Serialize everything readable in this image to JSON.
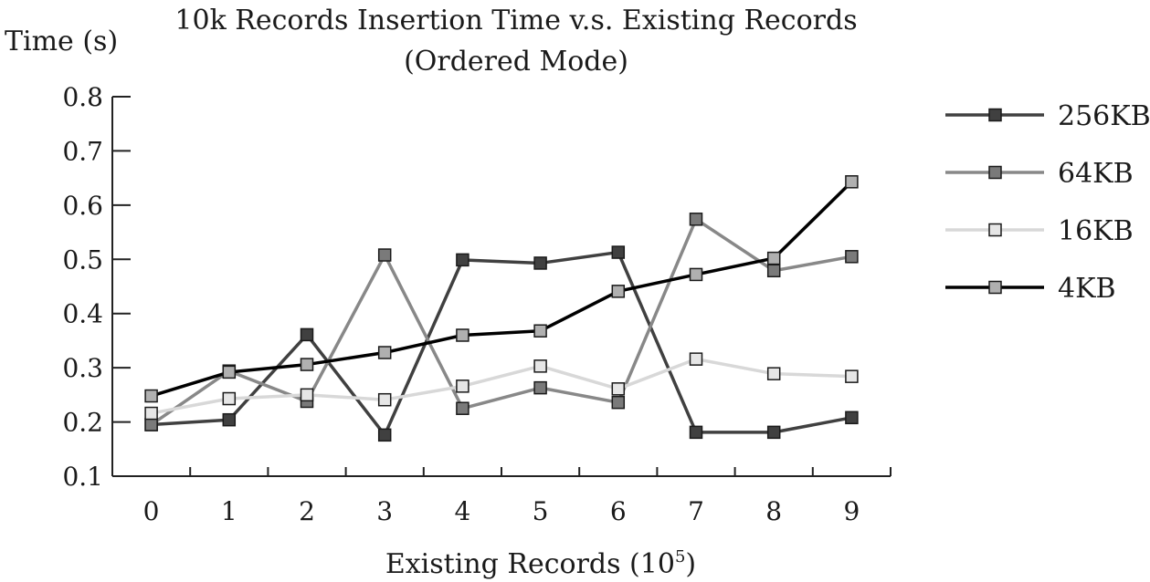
{
  "chart_data": {
    "type": "line",
    "title": "10k Records Insertion Time v.s. Existing Records",
    "subtitle": "(Ordered Mode)",
    "ylabel": "Time (s)",
    "xlabel": "Existing Records (10",
    "xlabel_sup": "5",
    "xlabel_close": ")",
    "categories": [
      "0",
      "1",
      "2",
      "3",
      "4",
      "5",
      "6",
      "7",
      "8",
      "9"
    ],
    "ylim": [
      0.1,
      0.8
    ],
    "yticks": [
      "0.1",
      "0.2",
      "0.3",
      "0.4",
      "0.5",
      "0.6",
      "0.7",
      "0.8"
    ],
    "grid": false,
    "legend_position": "right",
    "series": [
      {
        "name": "256KB",
        "values": [
          0.195,
          0.204,
          0.361,
          0.176,
          0.499,
          0.493,
          0.513,
          0.181,
          0.181,
          0.208
        ],
        "line_color": "#404040",
        "marker_color": "#404040"
      },
      {
        "name": "64KB",
        "values": [
          0.195,
          0.294,
          0.238,
          0.508,
          0.225,
          0.263,
          0.236,
          0.574,
          0.479,
          0.505
        ],
        "line_color": "#888888",
        "marker_color": "#7a7a7a"
      },
      {
        "name": "16KB",
        "values": [
          0.216,
          0.243,
          0.25,
          0.241,
          0.266,
          0.303,
          0.261,
          0.316,
          0.289,
          0.284
        ],
        "line_color": "#d8d8d8",
        "marker_color": "#e6e6e6"
      },
      {
        "name": "4KB",
        "values": [
          0.248,
          0.292,
          0.306,
          0.328,
          0.36,
          0.368,
          0.441,
          0.472,
          0.502,
          0.643
        ],
        "line_color": "#000000",
        "marker_color": "#b0b0b0"
      }
    ]
  }
}
